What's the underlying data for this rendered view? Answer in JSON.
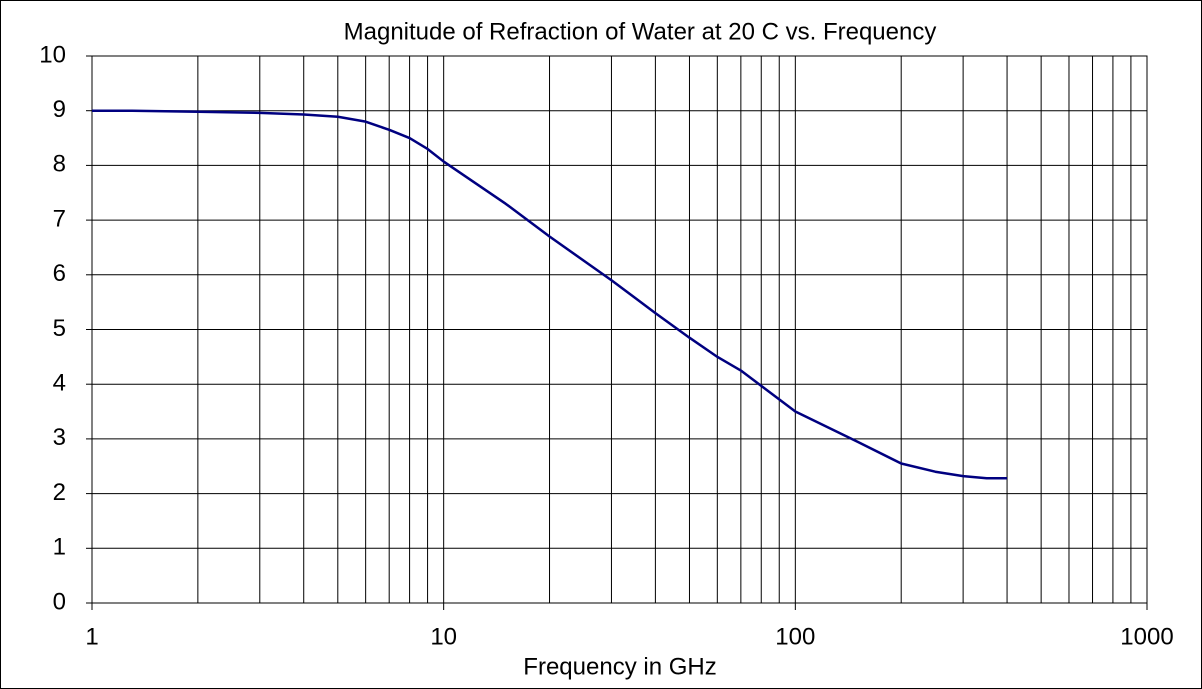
{
  "chart_data": {
    "type": "line",
    "title": "Magnitude of Refraction of Water at 20 C vs. Frequency",
    "xlabel": "Frequency in GHz",
    "x": [
      1,
      1.3,
      2,
      3,
      4,
      5,
      6,
      7,
      8,
      9,
      10,
      15,
      20,
      30,
      40,
      50,
      60,
      70,
      80,
      100,
      150,
      200,
      250,
      300,
      350,
      400
    ],
    "series": [
      {
        "name": "Magnitude of Refraction",
        "color": "#000080",
        "values": [
          9.0,
          9.0,
          8.98,
          8.96,
          8.93,
          8.89,
          8.8,
          8.65,
          8.5,
          8.3,
          8.07,
          7.3,
          6.7,
          5.9,
          5.3,
          4.85,
          4.5,
          4.25,
          3.97,
          3.5,
          2.95,
          2.55,
          2.4,
          2.32,
          2.28,
          2.28
        ]
      }
    ],
    "xlim": [
      1,
      1000
    ],
    "xscale": "log",
    "xticks": [
      1,
      10,
      100,
      1000
    ],
    "xminorticks": [
      2,
      3,
      4,
      5,
      6,
      7,
      8,
      9,
      20,
      30,
      40,
      50,
      60,
      70,
      80,
      90,
      200,
      300,
      400,
      500,
      600,
      700,
      800,
      900
    ],
    "ylim": [
      0,
      10
    ],
    "yticks": [
      0,
      1,
      2,
      3,
      4,
      5,
      6,
      7,
      8,
      9,
      10
    ],
    "grid": true
  }
}
